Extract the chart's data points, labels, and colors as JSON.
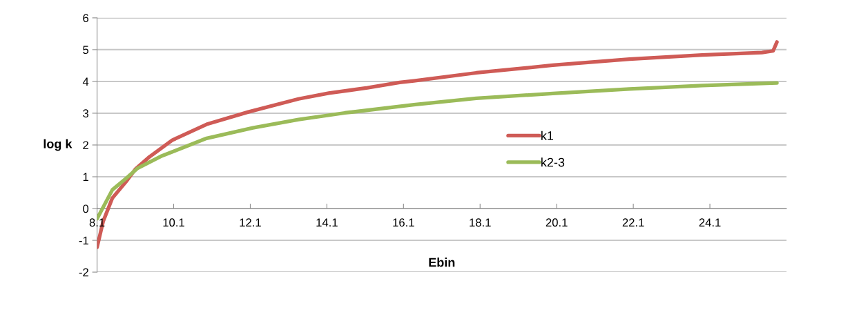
{
  "chart_data": {
    "type": "line",
    "xlabel": "Ebin",
    "ylabel": "log k",
    "xlim": [
      8.1,
      26.1
    ],
    "xticks": [
      8.1,
      10.1,
      12.1,
      14.1,
      16.1,
      18.1,
      20.1,
      22.1,
      24.1
    ],
    "ylim": [
      -2,
      6
    ],
    "yticks": [
      -2,
      -1,
      0,
      1,
      2,
      3,
      4,
      5,
      6
    ],
    "grid": "y",
    "legend": "right",
    "marker": "none",
    "line_style": "solid",
    "series": [
      {
        "name": "k1",
        "color": "#cf5b56",
        "x": [
          8.1,
          8.26,
          8.5,
          8.86,
          9.1,
          9.47,
          10.06,
          10.96,
          12.05,
          13.36,
          14.15,
          15.16,
          16.0,
          16.37,
          18.0,
          20.0,
          22.0,
          23.9,
          25.46,
          25.75,
          25.85
        ],
        "values": [
          -1.22,
          -0.4,
          0.33,
          0.85,
          1.24,
          1.63,
          2.15,
          2.65,
          3.04,
          3.45,
          3.63,
          3.8,
          3.97,
          4.02,
          4.27,
          4.51,
          4.7,
          4.83,
          4.91,
          4.96,
          5.24
        ]
      },
      {
        "name": "k2-3",
        "color": "#9bbb59",
        "x": [
          8.1,
          8.5,
          8.86,
          9.16,
          9.76,
          10.37,
          10.96,
          12.17,
          13.36,
          14.57,
          16.37,
          18.0,
          20.0,
          22.0,
          23.9,
          25.85
        ],
        "values": [
          -0.32,
          0.59,
          0.95,
          1.27,
          1.64,
          1.93,
          2.21,
          2.54,
          2.8,
          3.01,
          3.27,
          3.47,
          3.62,
          3.76,
          3.87,
          3.95
        ]
      }
    ]
  }
}
